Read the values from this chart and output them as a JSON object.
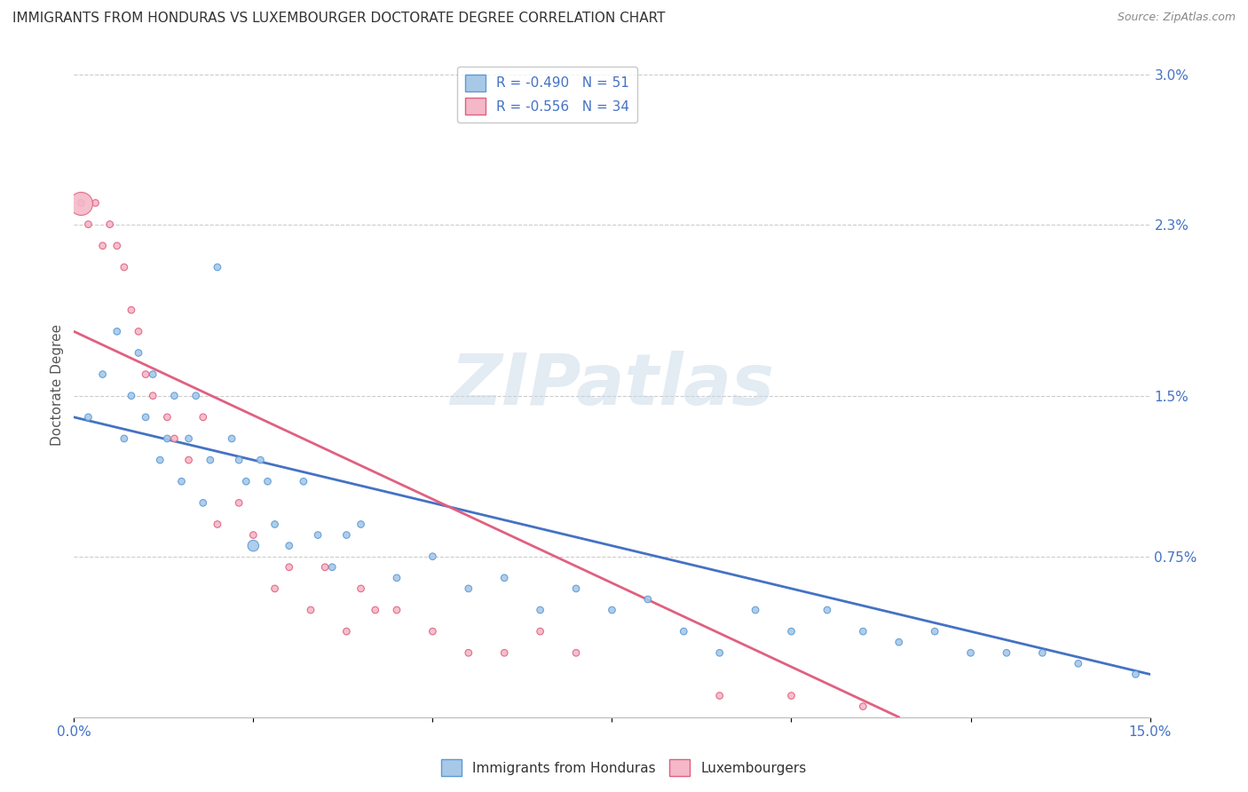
{
  "title": "IMMIGRANTS FROM HONDURAS VS LUXEMBOURGER DOCTORATE DEGREE CORRELATION CHART",
  "source": "Source: ZipAtlas.com",
  "ylabel": "Doctorate Degree",
  "xlim": [
    0.0,
    0.15
  ],
  "ylim": [
    0.0,
    0.031
  ],
  "xticks": [
    0.0,
    0.025,
    0.05,
    0.075,
    0.1,
    0.125,
    0.15
  ],
  "xticklabels": [
    "0.0%",
    "",
    "",
    "",
    "",
    "",
    "15.0%"
  ],
  "yticks_right": [
    0.0,
    0.0075,
    0.015,
    0.023,
    0.03
  ],
  "ytick_right_labels": [
    "",
    "0.75%",
    "1.5%",
    "2.3%",
    "3.0%"
  ],
  "legend_blue": "R = -0.490   N = 51",
  "legend_pink": "R = -0.556   N = 34",
  "blue_color": "#a8c8e8",
  "pink_color": "#f4b8c8",
  "blue_edge_color": "#5b9bd5",
  "pink_edge_color": "#e06080",
  "blue_line_color": "#4472c4",
  "pink_line_color": "#e06080",
  "watermark": "ZIPatlas",
  "blue_scatter_x": [
    0.002,
    0.004,
    0.006,
    0.007,
    0.008,
    0.009,
    0.01,
    0.011,
    0.012,
    0.013,
    0.014,
    0.015,
    0.016,
    0.017,
    0.018,
    0.019,
    0.02,
    0.022,
    0.023,
    0.024,
    0.025,
    0.026,
    0.027,
    0.028,
    0.03,
    0.032,
    0.034,
    0.036,
    0.038,
    0.04,
    0.045,
    0.05,
    0.055,
    0.06,
    0.065,
    0.07,
    0.075,
    0.08,
    0.085,
    0.09,
    0.095,
    0.1,
    0.105,
    0.11,
    0.115,
    0.12,
    0.125,
    0.13,
    0.135,
    0.14,
    0.148
  ],
  "blue_scatter_y": [
    0.014,
    0.016,
    0.018,
    0.013,
    0.015,
    0.017,
    0.014,
    0.016,
    0.012,
    0.013,
    0.015,
    0.011,
    0.013,
    0.015,
    0.01,
    0.012,
    0.021,
    0.013,
    0.012,
    0.011,
    0.008,
    0.012,
    0.011,
    0.009,
    0.008,
    0.011,
    0.0085,
    0.007,
    0.0085,
    0.009,
    0.0065,
    0.0075,
    0.006,
    0.0065,
    0.005,
    0.006,
    0.005,
    0.0055,
    0.004,
    0.003,
    0.005,
    0.004,
    0.005,
    0.004,
    0.0035,
    0.004,
    0.003,
    0.003,
    0.003,
    0.0025,
    0.002
  ],
  "blue_scatter_size": [
    30,
    30,
    30,
    30,
    30,
    30,
    30,
    30,
    30,
    30,
    30,
    30,
    30,
    30,
    30,
    30,
    30,
    30,
    30,
    30,
    80,
    30,
    30,
    30,
    30,
    30,
    30,
    30,
    30,
    30,
    30,
    30,
    30,
    30,
    30,
    30,
    30,
    30,
    30,
    30,
    30,
    30,
    30,
    30,
    30,
    30,
    30,
    30,
    30,
    30,
    30
  ],
  "pink_scatter_x": [
    0.001,
    0.002,
    0.003,
    0.004,
    0.005,
    0.006,
    0.007,
    0.008,
    0.009,
    0.01,
    0.011,
    0.013,
    0.014,
    0.016,
    0.018,
    0.02,
    0.023,
    0.025,
    0.028,
    0.03,
    0.033,
    0.035,
    0.038,
    0.04,
    0.042,
    0.045,
    0.05,
    0.055,
    0.06,
    0.065,
    0.07,
    0.09,
    0.1,
    0.11
  ],
  "pink_scatter_y": [
    0.024,
    0.023,
    0.024,
    0.022,
    0.023,
    0.022,
    0.021,
    0.019,
    0.018,
    0.016,
    0.015,
    0.014,
    0.013,
    0.012,
    0.014,
    0.009,
    0.01,
    0.0085,
    0.006,
    0.007,
    0.005,
    0.007,
    0.004,
    0.006,
    0.005,
    0.005,
    0.004,
    0.003,
    0.003,
    0.004,
    0.003,
    0.001,
    0.001,
    0.0005
  ],
  "pink_scatter_size": [
    30,
    30,
    30,
    30,
    30,
    30,
    30,
    30,
    30,
    30,
    30,
    30,
    30,
    30,
    30,
    30,
    30,
    30,
    30,
    30,
    30,
    30,
    30,
    30,
    30,
    30,
    30,
    30,
    30,
    30,
    30,
    30,
    30,
    30
  ],
  "pink_large_x": [
    0.001
  ],
  "pink_large_y": [
    0.024
  ],
  "pink_large_size": [
    350
  ],
  "blue_line_x0": 0.0,
  "blue_line_x1": 0.15,
  "blue_line_y0": 0.014,
  "blue_line_y1": 0.002,
  "pink_line_x0": 0.0,
  "pink_line_x1": 0.115,
  "pink_line_y0": 0.018,
  "pink_line_y1": 0.0
}
